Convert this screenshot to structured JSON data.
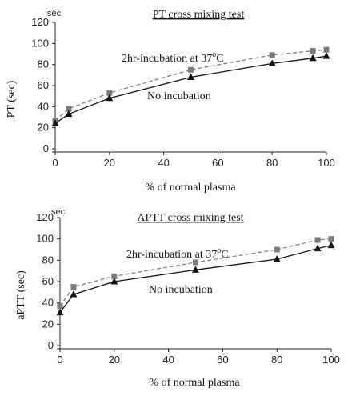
{
  "chart_data": [
    {
      "type": "line",
      "title": "PT cross mixing test",
      "xlabel": "% of normal plasma",
      "ylabel": "PT (sec)",
      "unit": "sec",
      "xlim": [
        0,
        100
      ],
      "ylim": [
        0,
        120
      ],
      "x_ticks": [
        0,
        20,
        40,
        60,
        80,
        100
      ],
      "y_ticks": [
        0,
        20,
        40,
        60,
        80,
        100,
        120
      ],
      "series": [
        {
          "name": "2hr-incubation at 37",
          "name_sup": "o",
          "name_suffix": "C",
          "color": "#7a7a7a",
          "dash": true,
          "marker": "square",
          "x": [
            0,
            5,
            20,
            50,
            80,
            95,
            100
          ],
          "values": [
            27,
            38,
            53,
            75,
            89,
            93,
            94
          ]
        },
        {
          "name": "No incubation",
          "color": "#111111",
          "dash": false,
          "marker": "triangle",
          "x": [
            0,
            5,
            20,
            50,
            80,
            95,
            100
          ],
          "values": [
            24,
            33,
            48,
            68,
            81,
            86,
            88
          ]
        }
      ],
      "grid": false
    },
    {
      "type": "line",
      "title": "APTT cross mixing test",
      "xlabel": "% of normal plasma",
      "ylabel": "aPTT (sec)",
      "unit": "sec",
      "xlim": [
        0,
        100
      ],
      "ylim": [
        0,
        120
      ],
      "x_ticks": [
        0,
        20,
        40,
        60,
        80,
        100
      ],
      "y_ticks": [
        0,
        20,
        40,
        60,
        80,
        100,
        120
      ],
      "series": [
        {
          "name": "2hr-incubation at 37",
          "name_sup": "o",
          "name_suffix": "C",
          "color": "#7a7a7a",
          "dash": true,
          "marker": "square",
          "x": [
            0,
            5,
            20,
            50,
            80,
            95,
            100
          ],
          "values": [
            37,
            55,
            65,
            78,
            90,
            99,
            100
          ]
        },
        {
          "name": "No incubation",
          "color": "#111111",
          "dash": false,
          "marker": "triangle",
          "x": [
            0,
            5,
            20,
            50,
            80,
            95,
            100
          ],
          "values": [
            31,
            48,
            60,
            71,
            81,
            91,
            94
          ]
        }
      ],
      "grid": false
    }
  ]
}
